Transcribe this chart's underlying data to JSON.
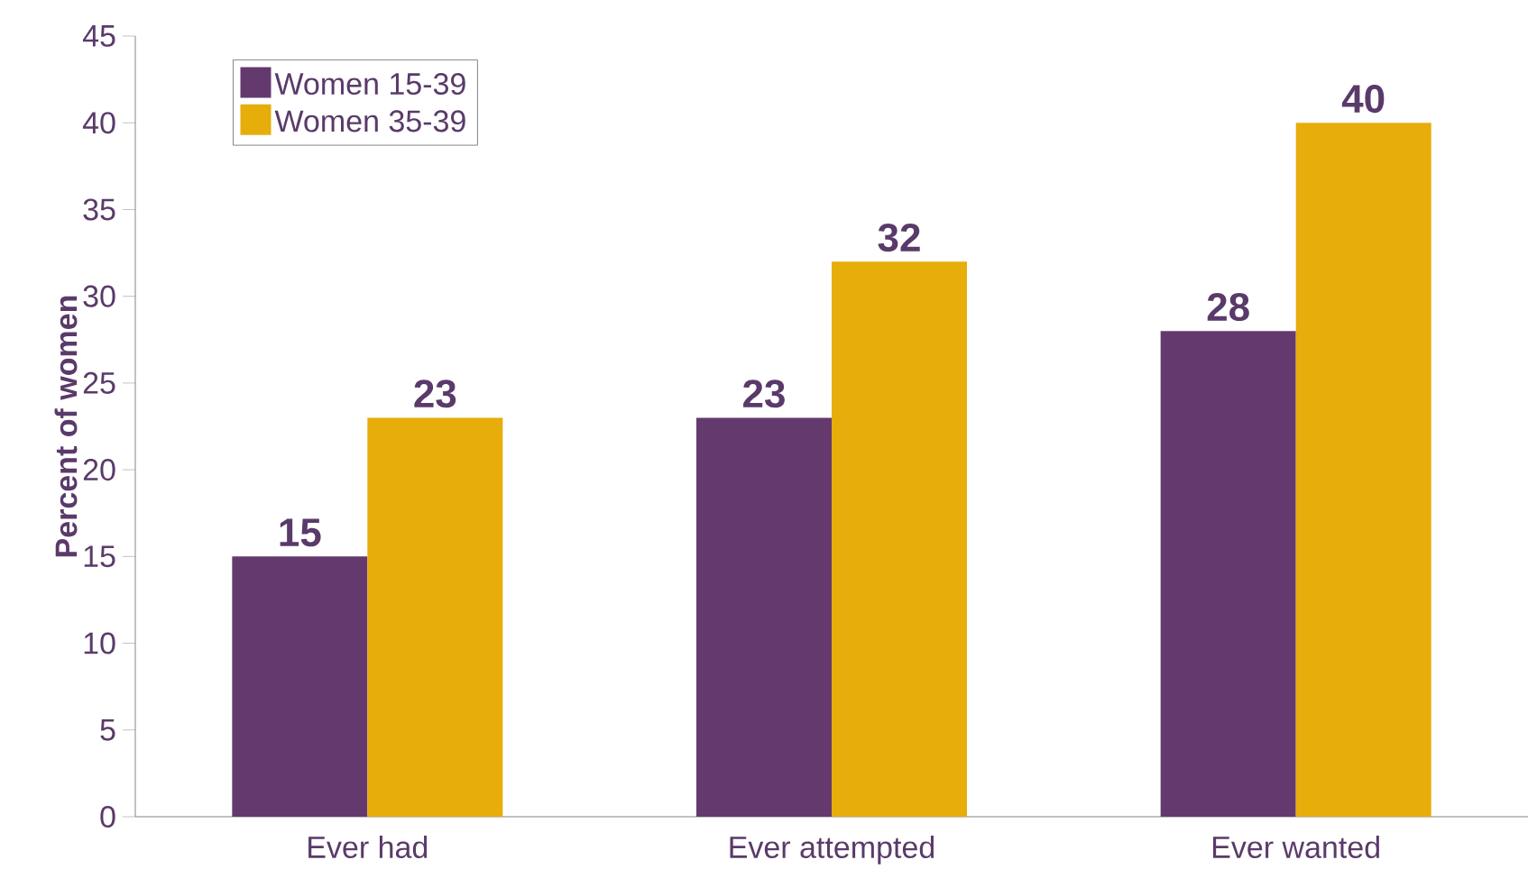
{
  "chart_data": {
    "type": "bar",
    "categories": [
      "Ever had",
      "Ever attempted",
      "Ever wanted"
    ],
    "series": [
      {
        "name": "Women 15-39",
        "color": "#643a6e",
        "values": [
          15,
          23,
          28
        ]
      },
      {
        "name": "Women 35-39",
        "color": "#e6ad0b",
        "values": [
          23,
          32,
          40
        ]
      }
    ],
    "ylabel": "Percent of women",
    "ylim": [
      0,
      45
    ],
    "yticks": [
      0,
      5,
      10,
      15,
      20,
      25,
      30,
      35,
      40,
      45
    ],
    "data_labels": true,
    "legend": "top left"
  }
}
